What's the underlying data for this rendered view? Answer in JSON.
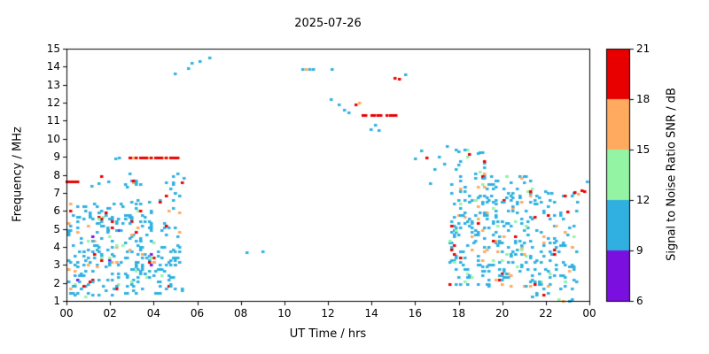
{
  "chart_data": {
    "type": "scatter",
    "title": "2025-07-26",
    "xlabel": "UT Time / hrs",
    "ylabel": "Frequency / MHz",
    "xlim": [
      0,
      24
    ],
    "ylim": [
      1,
      15
    ],
    "grid": false,
    "xticks": [
      {
        "t": 0,
        "label": "00"
      },
      {
        "t": 2,
        "label": "02"
      },
      {
        "t": 4,
        "label": "04"
      },
      {
        "t": 6,
        "label": "06"
      },
      {
        "t": 8,
        "label": "08"
      },
      {
        "t": 10,
        "label": "10"
      },
      {
        "t": 12,
        "label": "12"
      },
      {
        "t": 14,
        "label": "14"
      },
      {
        "t": 16,
        "label": "16"
      },
      {
        "t": 18,
        "label": "18"
      },
      {
        "t": 20,
        "label": "20"
      },
      {
        "t": 22,
        "label": "22"
      },
      {
        "t": 24,
        "label": "00"
      }
    ],
    "yticks": [
      1,
      2,
      3,
      4,
      5,
      6,
      7,
      8,
      9,
      10,
      11,
      12,
      13,
      14,
      15
    ],
    "colorbar": {
      "label": "Signal to Noise Ratio SNR / dB",
      "range": [
        6,
        21
      ],
      "ticks": [
        6,
        9,
        12,
        15,
        18,
        21
      ],
      "segments": [
        {
          "from": 6,
          "to": 9,
          "key": "purple",
          "color": "#7b0fe0"
        },
        {
          "from": 9,
          "to": 12,
          "key": "cyan",
          "color": "#2fb0e0"
        },
        {
          "from": 12,
          "to": 15,
          "key": "green",
          "color": "#93f4a4"
        },
        {
          "from": 15,
          "to": 18,
          "key": "orange",
          "color": "#ffaa5e"
        },
        {
          "from": 18,
          "to": 21,
          "key": "red",
          "color": "#e80000"
        }
      ]
    },
    "point_size": [
      3.5,
      3
    ],
    "grid_snap": {
      "t": 0.1,
      "f": 0.12
    },
    "seed": 20250726,
    "clusters": [
      {
        "t": [
          0.05,
          2.5
        ],
        "f": [
          1.1,
          6.4
        ],
        "n": 170,
        "mix": {
          "cyan": 0.8,
          "red": 0.07,
          "orange": 0.05,
          "green": 0.05,
          "purple": 0.03
        }
      },
      {
        "t": [
          2.5,
          5.4
        ],
        "f": [
          1.3,
          6.6
        ],
        "n": 170,
        "mix": {
          "cyan": 0.8,
          "red": 0.07,
          "orange": 0.05,
          "green": 0.05,
          "purple": 0.03
        }
      },
      {
        "t": [
          2.6,
          3.4
        ],
        "f": [
          7.2,
          8.1
        ],
        "n": 10,
        "mix": {
          "cyan": 0.7,
          "red": 0.2,
          "orange": 0.1
        }
      },
      {
        "t": [
          4.6,
          5.4
        ],
        "f": [
          6.8,
          8.2
        ],
        "n": 12,
        "mix": {
          "cyan": 0.85,
          "red": 0.15
        }
      },
      {
        "t": [
          17.6,
          21.4
        ],
        "f": [
          1.8,
          8.0
        ],
        "n": 300,
        "mix": {
          "cyan": 0.78,
          "red": 0.07,
          "orange": 0.07,
          "green": 0.08
        }
      },
      {
        "t": [
          21.4,
          23.4
        ],
        "f": [
          1.0,
          7.2
        ],
        "n": 110,
        "mix": {
          "cyan": 0.82,
          "red": 0.08,
          "orange": 0.05,
          "green": 0.05
        }
      },
      {
        "t": [
          17.7,
          19.3
        ],
        "f": [
          7.9,
          9.4
        ],
        "n": 14,
        "mix": {
          "cyan": 0.8,
          "green": 0.1,
          "red": 0.1
        }
      }
    ],
    "streaks": [
      {
        "t0": 0.05,
        "t1": 0.55,
        "f": 7.6,
        "step": 0.12,
        "colors": [
          "red"
        ]
      },
      {
        "t0": 2.9,
        "t1": 5.1,
        "f": 8.95,
        "step": 0.1,
        "colors": [
          "red",
          "red",
          "orange",
          "red",
          null,
          "red",
          "red"
        ]
      },
      {
        "t0": 13.6,
        "t1": 15.35,
        "f": 11.3,
        "step": 0.14,
        "colors": [
          "red",
          "red",
          null,
          "red",
          "red"
        ]
      },
      {
        "t0": 10.85,
        "t1": 11.35,
        "f": 13.85,
        "step": 0.16,
        "colors": [
          "cyan",
          "orange",
          "cyan",
          "cyan"
        ]
      }
    ],
    "singles": [
      [
        1.15,
        7.35,
        "cyan"
      ],
      [
        1.5,
        7.5,
        "cyan"
      ],
      [
        1.95,
        7.6,
        "cyan"
      ],
      [
        1.6,
        7.9,
        "red"
      ],
      [
        2.25,
        8.9,
        "cyan"
      ],
      [
        2.45,
        8.95,
        "cyan"
      ],
      [
        5.0,
        13.6,
        "cyan"
      ],
      [
        5.6,
        13.9,
        "cyan"
      ],
      [
        5.75,
        14.2,
        "cyan"
      ],
      [
        6.15,
        14.3,
        "cyan"
      ],
      [
        6.6,
        14.5,
        "cyan"
      ],
      [
        8.3,
        3.7,
        "cyan"
      ],
      [
        9.0,
        3.75,
        "cyan"
      ],
      [
        12.2,
        13.85,
        "cyan"
      ],
      [
        12.15,
        12.2,
        "cyan"
      ],
      [
        12.5,
        11.9,
        "cyan"
      ],
      [
        12.75,
        11.6,
        "cyan"
      ],
      [
        12.95,
        11.45,
        "cyan"
      ],
      [
        13.3,
        11.9,
        "red"
      ],
      [
        13.45,
        12.0,
        "orange"
      ],
      [
        14.0,
        10.5,
        "cyan"
      ],
      [
        14.2,
        10.75,
        "cyan"
      ],
      [
        14.35,
        10.45,
        "cyan"
      ],
      [
        15.1,
        13.35,
        "red"
      ],
      [
        15.3,
        13.3,
        "red"
      ],
      [
        15.55,
        13.55,
        "cyan"
      ],
      [
        16.0,
        8.9,
        "cyan"
      ],
      [
        16.3,
        9.35,
        "cyan"
      ],
      [
        16.55,
        8.95,
        "red"
      ],
      [
        16.7,
        7.5,
        "cyan"
      ],
      [
        16.9,
        8.3,
        "cyan"
      ],
      [
        17.1,
        9.0,
        "cyan"
      ],
      [
        17.35,
        8.6,
        "cyan"
      ],
      [
        17.5,
        9.55,
        "cyan"
      ],
      [
        18.0,
        9.3,
        "cyan"
      ],
      [
        18.4,
        9.0,
        "green"
      ],
      [
        18.9,
        9.2,
        "cyan"
      ],
      [
        23.0,
        5.95,
        "red"
      ],
      [
        23.35,
        7.0,
        "red"
      ],
      [
        23.5,
        6.9,
        "orange"
      ],
      [
        23.65,
        7.1,
        "red"
      ],
      [
        23.8,
        7.05,
        "red"
      ],
      [
        23.9,
        7.6,
        "cyan"
      ],
      [
        23.45,
        6.5,
        "cyan"
      ]
    ]
  }
}
